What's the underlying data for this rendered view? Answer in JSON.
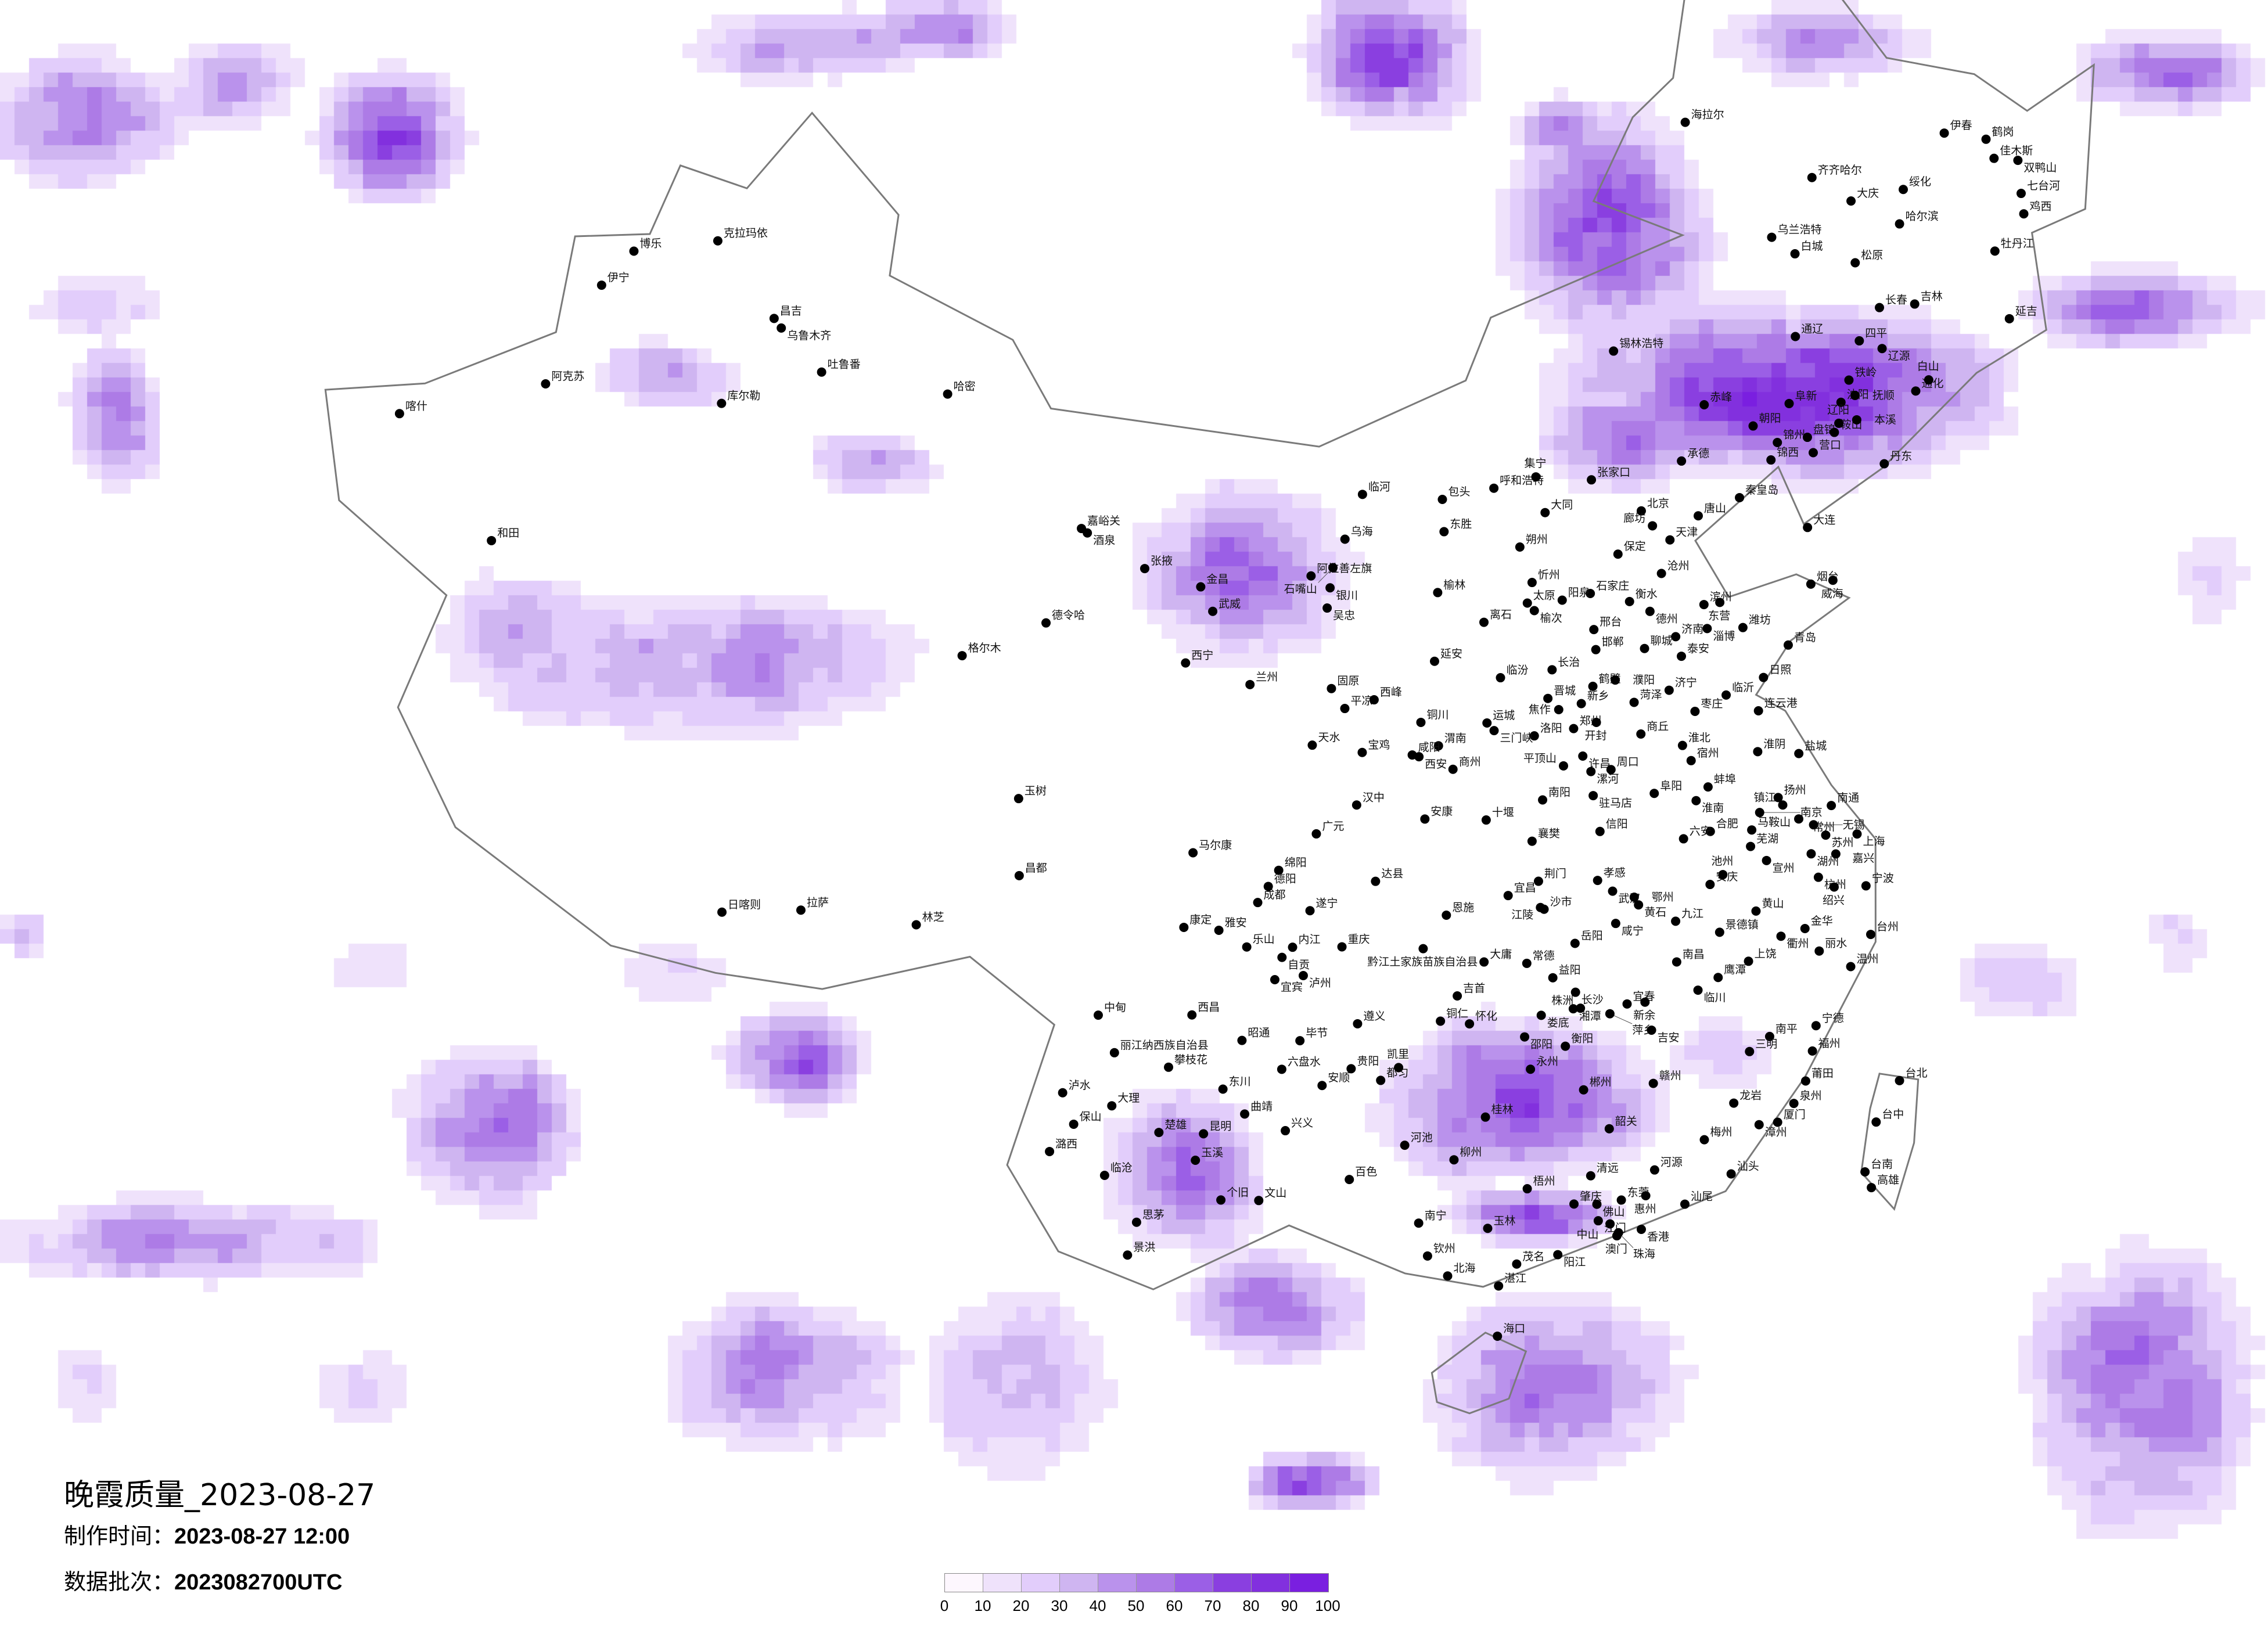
{
  "title": {
    "main": "晚霞质量_2023-08-27",
    "made_label": "制作时间：",
    "made_value": "2023-08-27 12:00",
    "batch_label": "数据批次：",
    "batch_value": "2023082700UTC"
  },
  "legend": {
    "ticks": [
      "0",
      "10",
      "20",
      "30",
      "40",
      "50",
      "60",
      "70",
      "80",
      "90",
      "100"
    ],
    "colors": [
      "#fdf7fe",
      "#efe2fb",
      "#e2cdfb",
      "#cfb5f1",
      "#ba92ec",
      "#ad7be6",
      "#9b5fe6",
      "#8a3fe0",
      "#8230de",
      "#7a1fe0"
    ]
  },
  "map": {
    "border_color": "#7a7a7a",
    "cities": [
      [
        "克拉玛依",
        84.87,
        45.6
      ],
      [
        "伊宁",
        81.3,
        43.9
      ],
      [
        "博乐",
        82.1,
        44.9
      ],
      [
        "昌吉",
        87.3,
        44.0
      ],
      [
        "乌鲁木齐",
        87.6,
        43.8
      ],
      [
        "吐鲁番",
        89.2,
        42.9
      ],
      [
        "哈密",
        93.5,
        42.8
      ],
      [
        "库尔勒",
        86.1,
        41.7
      ],
      [
        "阿克苏",
        80.3,
        41.2
      ],
      [
        "喀什",
        76.0,
        39.5
      ],
      [
        "和田",
        79.9,
        37.1
      ],
      [
        "日喀则",
        88.9,
        29.3
      ],
      [
        "拉萨",
        91.1,
        29.65
      ],
      [
        "林芝",
        94.4,
        29.65
      ],
      [
        "昌都",
        97.2,
        31.1
      ],
      [
        "格尔木",
        94.9,
        36.4
      ],
      [
        "德令哈",
        97.4,
        37.4
      ],
      [
        "西宁",
        101.8,
        36.6
      ],
      [
        "玉树",
        97.0,
        33.0
      ],
      [
        "嘉峪关",
        98.3,
        39.8
      ],
      [
        "酒泉",
        98.5,
        39.7
      ],
      [
        "张掖",
        100.4,
        38.9
      ],
      [
        "金昌",
        102.2,
        38.5
      ],
      [
        "武威",
        102.6,
        37.9
      ],
      [
        "兰州",
        103.8,
        36.1
      ],
      [
        "天水",
        105.7,
        34.6
      ],
      [
        "平凉",
        106.7,
        35.5
      ],
      [
        "西峰",
        107.6,
        35.7
      ],
      [
        "阿拉善左旗",
        105.7,
        38.8
      ],
      [
        "乌海",
        106.8,
        39.7
      ],
      [
        "银川",
        106.3,
        38.5
      ],
      [
        "石嘴山",
        106.4,
        39.0
      ],
      [
        "吴忠",
        106.2,
        38.0
      ],
      [
        "固原",
        106.3,
        36.0
      ],
      [
        "临河",
        107.4,
        40.8
      ],
      [
        "包头",
        110.0,
        40.6
      ],
      [
        "呼和浩特",
        111.7,
        40.8
      ],
      [
        "集宁",
        113.1,
        41.0
      ],
      [
        "东胜",
        110.0,
        39.8
      ],
      [
        "锡林浩特",
        116.1,
        43.9
      ],
      [
        "赤峰",
        118.9,
        42.3
      ],
      [
        "通辽",
        122.3,
        43.6
      ],
      [
        "乌兰浩特",
        122.1,
        46.1
      ],
      [
        "海拉尔",
        119.7,
        49.2
      ],
      [
        "齐齐哈尔",
        123.9,
        47.35
      ],
      [
        "大庆",
        125.1,
        46.6
      ],
      [
        "哈尔滨",
        126.6,
        45.8
      ],
      [
        "绥化",
        127.0,
        46.6
      ],
      [
        "伊春",
        128.9,
        47.7
      ],
      [
        "鹤岗",
        130.3,
        47.3
      ],
      [
        "佳木斯",
        130.4,
        46.8
      ],
      [
        "双鸭山",
        131.2,
        46.6
      ],
      [
        "七台河",
        131.0,
        45.8
      ],
      [
        "鸡西",
        130.9,
        45.3
      ],
      [
        "牡丹江",
        129.6,
        44.6
      ],
      [
        "白城",
        122.8,
        45.6
      ],
      [
        "松原",
        124.8,
        45.1
      ],
      [
        "长春",
        125.3,
        43.9
      ],
      [
        "吉林",
        126.5,
        43.8
      ],
      [
        "四平",
        124.4,
        43.2
      ],
      [
        "辽源",
        125.1,
        42.9
      ],
      [
        "通化",
        125.9,
        41.7
      ],
      [
        "白山",
        126.4,
        41.9
      ],
      [
        "延吉",
        129.5,
        42.9
      ],
      [
        "沈阳",
        123.4,
        41.8
      ],
      [
        "抚顺",
        123.9,
        41.9
      ],
      [
        "铁岭",
        123.8,
        42.3
      ],
      [
        "阜新",
        121.7,
        42.0
      ],
      [
        "朝阳",
        120.4,
        41.6
      ],
      [
        "锦州",
        121.1,
        41.1
      ],
      [
        "盘锦",
        122.1,
        41.1
      ],
      [
        "鞍山",
        123.0,
        41.1
      ],
      [
        "辽阳",
        123.2,
        41.3
      ],
      [
        "本溪",
        123.8,
        41.3
      ],
      [
        "营口",
        122.2,
        40.7
      ],
      [
        "锦西",
        120.8,
        40.7
      ],
      [
        "丹东",
        124.4,
        40.1
      ],
      [
        "大连",
        121.6,
        38.9
      ],
      [
        "北京",
        116.4,
        39.9
      ],
      [
        "天津",
        117.2,
        39.1
      ],
      [
        "廊坊",
        116.7,
        39.5
      ],
      [
        "唐山",
        118.2,
        39.6
      ],
      [
        "秦皇岛",
        119.6,
        39.9
      ],
      [
        "承德",
        117.9,
        41.0
      ],
      [
        "张家口",
        114.9,
        40.8
      ],
      [
        "保定",
        115.5,
        38.9
      ],
      [
        "沧州",
        116.8,
        38.3
      ],
      [
        "石家庄",
        114.5,
        38.0
      ],
      [
        "衡水",
        115.7,
        37.7
      ],
      [
        "邢台",
        114.5,
        37.1
      ],
      [
        "邯郸",
        114.5,
        36.6
      ],
      [
        "大同",
        113.3,
        40.1
      ],
      [
        "朔州",
        112.4,
        39.3
      ],
      [
        "忻州",
        112.7,
        38.4
      ],
      [
        "太原",
        112.5,
        37.9
      ],
      [
        "阳泉",
        113.6,
        37.9
      ],
      [
        "榆次",
        112.7,
        37.7
      ],
      [
        "离石",
        111.1,
        37.5
      ],
      [
        "长治",
        113.1,
        36.2
      ],
      [
        "临汾",
        111.5,
        36.1
      ],
      [
        "晋城",
        112.9,
        35.5
      ],
      [
        "运城",
        111.0,
        35.0
      ],
      [
        "榆林",
        109.7,
        38.3
      ],
      [
        "延安",
        109.5,
        36.6
      ],
      [
        "铜川",
        109.0,
        35.1
      ],
      [
        "渭南",
        109.5,
        34.5
      ],
      [
        "咸阳",
        108.7,
        34.3
      ],
      [
        "西安",
        108.9,
        34.25
      ],
      [
        "宝鸡",
        107.2,
        34.4
      ],
      [
        "商州",
        109.9,
        33.9
      ],
      [
        "汉中",
        107.0,
        33.1
      ],
      [
        "安康",
        109.0,
        32.7
      ],
      [
        "济南",
        117.0,
        36.7
      ],
      [
        "德州",
        116.3,
        37.4
      ],
      [
        "滨州",
        118.0,
        37.4
      ],
      [
        "东营",
        118.5,
        37.4
      ],
      [
        "淄博",
        118.0,
        36.8
      ],
      [
        "潍坊",
        119.1,
        36.7
      ],
      [
        "烟台",
        121.4,
        37.5
      ],
      [
        "威海",
        122.1,
        37.5
      ],
      [
        "青岛",
        120.4,
        36.1
      ],
      [
        "日照",
        119.5,
        35.4
      ],
      [
        "临沂",
        118.3,
        35.1
      ],
      [
        "枣庄",
        117.3,
        34.8
      ],
      [
        "济宁",
        116.6,
        35.4
      ],
      [
        "泰安",
        117.1,
        36.2
      ],
      [
        "聊城",
        116.0,
        36.5
      ],
      [
        "菏泽",
        115.5,
        35.2
      ],
      [
        "郑州",
        113.6,
        34.7
      ],
      [
        "开封",
        114.3,
        34.8
      ],
      [
        "洛阳",
        112.4,
        34.6
      ],
      [
        "三门峡",
        111.2,
        34.8
      ],
      [
        "焦作",
        113.2,
        35.2
      ],
      [
        "新乡",
        113.9,
        35.3
      ],
      [
        "鹤壁",
        114.3,
        35.7
      ],
      [
        "濮阳",
        115.0,
        35.8
      ],
      [
        "商丘",
        115.6,
        34.4
      ],
      [
        "许昌",
        113.8,
        34.0
      ],
      [
        "平顶山",
        113.2,
        33.8
      ],
      [
        "漯河",
        114.0,
        33.6
      ],
      [
        "周口",
        114.6,
        33.6
      ],
      [
        "驻马店",
        114.0,
        33.0
      ],
      [
        "南阳",
        112.5,
        33.0
      ],
      [
        "信阳",
        114.1,
        32.1
      ],
      [
        "淮北",
        116.8,
        34.0
      ],
      [
        "宿州",
        117.0,
        33.6
      ],
      [
        "阜阳",
        115.8,
        32.9
      ],
      [
        "蚌埠",
        117.4,
        32.9
      ],
      [
        "淮南",
        117.0,
        32.6
      ],
      [
        "合肥",
        117.3,
        31.8
      ],
      [
        "六安",
        116.5,
        31.7
      ],
      [
        "安庆",
        117.1,
        30.5
      ],
      [
        "池州",
        117.5,
        30.7
      ],
      [
        "芜湖",
        118.4,
        31.3
      ],
      [
        "马鞍山",
        118.5,
        31.7
      ],
      [
        "宣州",
        118.8,
        30.9
      ],
      [
        "黄山",
        118.3,
        29.7
      ],
      [
        "连云港",
        119.2,
        34.6
      ],
      [
        "淮阴",
        119.0,
        33.6
      ],
      [
        "盐城",
        120.2,
        33.4
      ],
      [
        "扬州",
        119.4,
        32.4
      ],
      [
        "镇江",
        119.5,
        32.2
      ],
      [
        "南京",
        118.8,
        32.1
      ],
      [
        "常州",
        119.9,
        31.8
      ],
      [
        "无锡",
        120.3,
        31.6
      ],
      [
        "苏州",
        120.6,
        31.3
      ],
      [
        "南通",
        120.9,
        32.0
      ],
      [
        "上海",
        121.5,
        31.2
      ],
      [
        "湖州",
        120.1,
        30.9
      ],
      [
        "嘉兴",
        120.8,
        30.8
      ],
      [
        "杭州",
        120.2,
        30.3
      ],
      [
        "绍兴",
        120.6,
        30.0
      ],
      [
        "宁波",
        121.5,
        29.9
      ],
      [
        "金华",
        119.6,
        29.1
      ],
      [
        "衢州",
        118.9,
        29.0
      ],
      [
        "丽水",
        119.9,
        28.5
      ],
      [
        "温州",
        120.7,
        28.0
      ],
      [
        "台州",
        121.4,
        28.7
      ],
      [
        "襄樊",
        112.1,
        32.0
      ],
      [
        "十堰",
        110.8,
        32.6
      ],
      [
        "荆门",
        112.2,
        31.0
      ],
      [
        "宜昌",
        111.3,
        30.7
      ],
      [
        "孝感",
        113.9,
        30.9
      ],
      [
        "武汉",
        114.3,
        30.6
      ],
      [
        "鄂州",
        114.9,
        30.4
      ],
      [
        "黄石",
        115.0,
        30.2
      ],
      [
        "沙市",
        112.3,
        30.3
      ],
      [
        "江陵",
        112.2,
        30.35
      ],
      [
        "咸宁",
        114.3,
        29.8
      ],
      [
        "恩施",
        109.5,
        30.3
      ],
      [
        "岳阳",
        113.1,
        29.4
      ],
      [
        "常德",
        111.7,
        29.0
      ],
      [
        "益阳",
        112.4,
        28.6
      ],
      [
        "大庸",
        110.5,
        29.1
      ],
      [
        "长沙",
        113.0,
        28.2
      ],
      [
        "湘潭",
        112.9,
        27.8
      ],
      [
        "株洲",
        113.1,
        27.8
      ],
      [
        "娄底",
        112.0,
        27.7
      ],
      [
        "邵阳",
        111.5,
        27.2
      ],
      [
        "衡阳",
        112.6,
        26.9
      ],
      [
        "永州",
        111.6,
        26.4
      ],
      [
        "郴州",
        113.0,
        25.8
      ],
      [
        "怀化",
        110.0,
        27.6
      ],
      [
        "吉首",
        109.7,
        28.3
      ],
      [
        "九江",
        116.0,
        29.7
      ],
      [
        "南昌",
        115.9,
        28.7
      ],
      [
        "景德镇",
        117.2,
        29.3
      ],
      [
        "上饶",
        117.9,
        28.5
      ],
      [
        "鹰潭",
        117.0,
        28.2
      ],
      [
        "临川",
        116.4,
        27.95
      ],
      [
        "宜春",
        114.4,
        27.8
      ],
      [
        "新余",
        114.9,
        27.8
      ],
      [
        "萍乡",
        113.9,
        27.6
      ],
      [
        "吉安",
        115.0,
        27.1
      ],
      [
        "赣州",
        114.9,
        25.8
      ],
      [
        "南平",
        118.2,
        26.6
      ],
      [
        "三明",
        117.6,
        26.3
      ],
      [
        "宁德",
        119.5,
        26.7
      ],
      [
        "福州",
        119.3,
        26.1
      ],
      [
        "莆田",
        119.0,
        25.4
      ],
      [
        "泉州",
        118.6,
        24.9
      ],
      [
        "厦门",
        118.1,
        24.5
      ],
      [
        "漳州",
        117.6,
        24.5
      ],
      [
        "龙岩",
        117.0,
        25.1
      ],
      [
        "韶关",
        113.6,
        24.8
      ],
      [
        "梅州",
        116.1,
        24.3
      ],
      [
        "汕头",
        116.7,
        23.4
      ],
      [
        "汕尾",
        115.4,
        22.8
      ],
      [
        "河源",
        114.7,
        23.7
      ],
      [
        "清远",
        113.0,
        23.7
      ],
      [
        "肇庆",
        112.5,
        23.05
      ],
      [
        "佛山",
        113.1,
        23.0
      ],
      [
        "东莞",
        113.75,
        23.05
      ],
      [
        "惠州",
        114.4,
        23.1
      ],
      [
        "江门",
        113.1,
        22.6
      ],
      [
        "中山",
        113.4,
        22.5
      ],
      [
        "香港",
        114.2,
        22.3
      ],
      [
        "澳门",
        113.55,
        22.2
      ],
      [
        "珠海",
        113.6,
        22.27
      ],
      [
        "阳江",
        111.98,
        21.86
      ],
      [
        "茂名",
        110.9,
        21.7
      ],
      [
        "湛江",
        110.4,
        21.2
      ],
      [
        "海口",
        110.3,
        20.0
      ],
      [
        "桂林",
        110.3,
        25.3
      ],
      [
        "柳州",
        109.4,
        24.3
      ],
      [
        "河池",
        108.1,
        24.7
      ],
      [
        "百色",
        106.6,
        23.9
      ],
      [
        "南宁",
        108.4,
        22.8
      ],
      [
        "梧州",
        111.3,
        23.5
      ],
      [
        "玉林",
        110.2,
        22.6
      ],
      [
        "钦州",
        108.6,
        22.0
      ],
      [
        "北海",
        109.1,
        21.5
      ],
      [
        "遵义",
        106.9,
        27.7
      ],
      [
        "铜仁",
        109.2,
        27.7
      ],
      [
        "贵阳",
        106.7,
        26.6
      ],
      [
        "安顺",
        105.9,
        26.2
      ],
      [
        "都匀",
        107.5,
        26.3
      ],
      [
        "凯里",
        108.0,
        26.6
      ],
      [
        "六盘水",
        104.8,
        26.6
      ],
      [
        "毕节",
        105.3,
        27.3
      ],
      [
        "兴义",
        104.9,
        25.1
      ],
      [
        "昆明",
        102.7,
        25.0
      ],
      [
        "曲靖",
        103.8,
        25.5
      ],
      [
        "昭通",
        103.7,
        27.3
      ],
      [
        "东川",
        103.2,
        26.1
      ],
      [
        "楚雄",
        101.5,
        25.0
      ],
      [
        "玉溪",
        102.5,
        24.35
      ],
      [
        "大理",
        100.2,
        25.6
      ],
      [
        "保山",
        99.2,
        25.1
      ],
      [
        "潞西",
        98.6,
        24.4
      ],
      [
        "临沧",
        100.1,
        23.9
      ],
      [
        "思茅",
        101.0,
        22.8
      ],
      [
        "景洪",
        100.8,
        22.0
      ],
      [
        "个旧",
        103.2,
        23.4
      ],
      [
        "文山",
        104.2,
        23.4
      ],
      [
        "中甸",
        99.7,
        27.8
      ],
      [
        "丽江纳西族自治县",
        100.2,
        26.9
      ],
      [
        "攀枝花",
        101.7,
        26.6
      ],
      [
        "泸水",
        98.85,
        25.85
      ],
      [
        "西昌",
        102.3,
        27.9
      ],
      [
        "成都",
        104.1,
        30.7
      ],
      [
        "德阳",
        104.4,
        31.1
      ],
      [
        "绵阳",
        104.7,
        31.5
      ],
      [
        "广元",
        105.8,
        32.4
      ],
      [
        "达县",
        107.5,
        31.2
      ],
      [
        "遂宁",
        105.6,
        30.5
      ],
      [
        "内江",
        105.1,
        29.6
      ],
      [
        "自贡",
        104.8,
        29.35
      ],
      [
        "泸州",
        105.4,
        28.9
      ],
      [
        "宜宾",
        104.6,
        28.8
      ],
      [
        "乐山",
        103.8,
        29.6
      ],
      [
        "雅安",
        103.0,
        30.0
      ],
      [
        "康定",
        102.0,
        30.05
      ],
      [
        "马尔康",
        102.2,
        31.9
      ],
      [
        "重庆",
        106.5,
        29.6
      ],
      [
        "黔江土家族苗族自治县",
        108.8,
        29.5
      ],
      [
        "台北",
        121.5,
        25.05
      ],
      [
        "台中",
        120.7,
        24.15
      ],
      [
        "台南",
        120.2,
        23.0
      ],
      [
        "高雄",
        120.3,
        22.6
      ]
    ]
  }
}
